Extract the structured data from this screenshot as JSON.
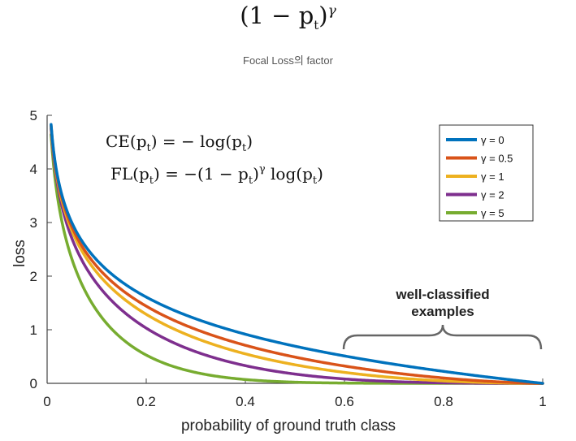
{
  "header": {
    "formula_base": "(1 − p",
    "formula_sub": "t",
    "formula_close": ")",
    "formula_exp": "γ",
    "caption": "Focal Loss의 factor"
  },
  "chart_data": {
    "type": "line",
    "title": "",
    "xlabel": "probability of ground truth class",
    "ylabel": "loss",
    "xlim": [
      0,
      1
    ],
    "ylim": [
      0,
      5
    ],
    "xticks": [
      0,
      0.2,
      0.4,
      0.6,
      0.8,
      1
    ],
    "xtick_labels": [
      "0",
      "0.2",
      "0.4",
      "0.6",
      "0.8",
      "1"
    ],
    "yticks": [
      0,
      1,
      2,
      3,
      4,
      5
    ],
    "ytick_labels": [
      "0",
      "1",
      "2",
      "3",
      "4",
      "5"
    ],
    "formula": "FL(p_t) = -(1 - p_t)^γ log(p_t)",
    "x": [
      0.01,
      0.05,
      0.1,
      0.2,
      0.3,
      0.4,
      0.5,
      0.6,
      0.7,
      0.8,
      0.9,
      1.0
    ],
    "series": [
      {
        "name": "γ = 0",
        "gamma": 0,
        "color": "#0072BD",
        "values": [
          4.605,
          2.996,
          2.303,
          1.609,
          1.204,
          0.916,
          0.693,
          0.511,
          0.357,
          0.223,
          0.105,
          0
        ]
      },
      {
        "name": "γ = 0.5",
        "gamma": 0.5,
        "color": "#D95319",
        "values": [
          4.582,
          2.92,
          2.184,
          1.44,
          1.007,
          0.71,
          0.49,
          0.323,
          0.195,
          0.1,
          0.033,
          0
        ]
      },
      {
        "name": "γ = 1",
        "gamma": 1,
        "color": "#EDB120",
        "values": [
          4.559,
          2.846,
          2.072,
          1.288,
          0.843,
          0.55,
          0.347,
          0.204,
          0.107,
          0.045,
          0.011,
          0
        ]
      },
      {
        "name": "γ = 2",
        "gamma": 2,
        "color": "#7E2F8E",
        "values": [
          4.514,
          2.704,
          1.865,
          1.03,
          0.59,
          0.33,
          0.173,
          0.082,
          0.032,
          0.009,
          0.001,
          0
        ]
      },
      {
        "name": "γ = 5",
        "gamma": 5,
        "color": "#77AC30",
        "values": [
          4.381,
          2.318,
          1.36,
          0.527,
          0.202,
          0.071,
          0.022,
          0.005,
          0.001,
          0.0,
          0.0,
          0
        ]
      }
    ],
    "legend_position": "top-right",
    "annotations": {
      "ce_lhs": "CE(p",
      "ce_sub": "t",
      "ce_rhs": ") = − log(p",
      "ce_sub2": "t",
      "ce_end": ")",
      "fl_lhs": "FL(p",
      "fl_sub": "t",
      "fl_mid": ") = −(1 − p",
      "fl_sub2": "t",
      "fl_close": ")",
      "fl_exp": "γ",
      "fl_log": " log(p",
      "fl_sub3": "t",
      "fl_end": ")",
      "well_classified_line1": "well-classified",
      "well_classified_line2": "examples",
      "brace_range": [
        0.6,
        1.0
      ]
    }
  }
}
